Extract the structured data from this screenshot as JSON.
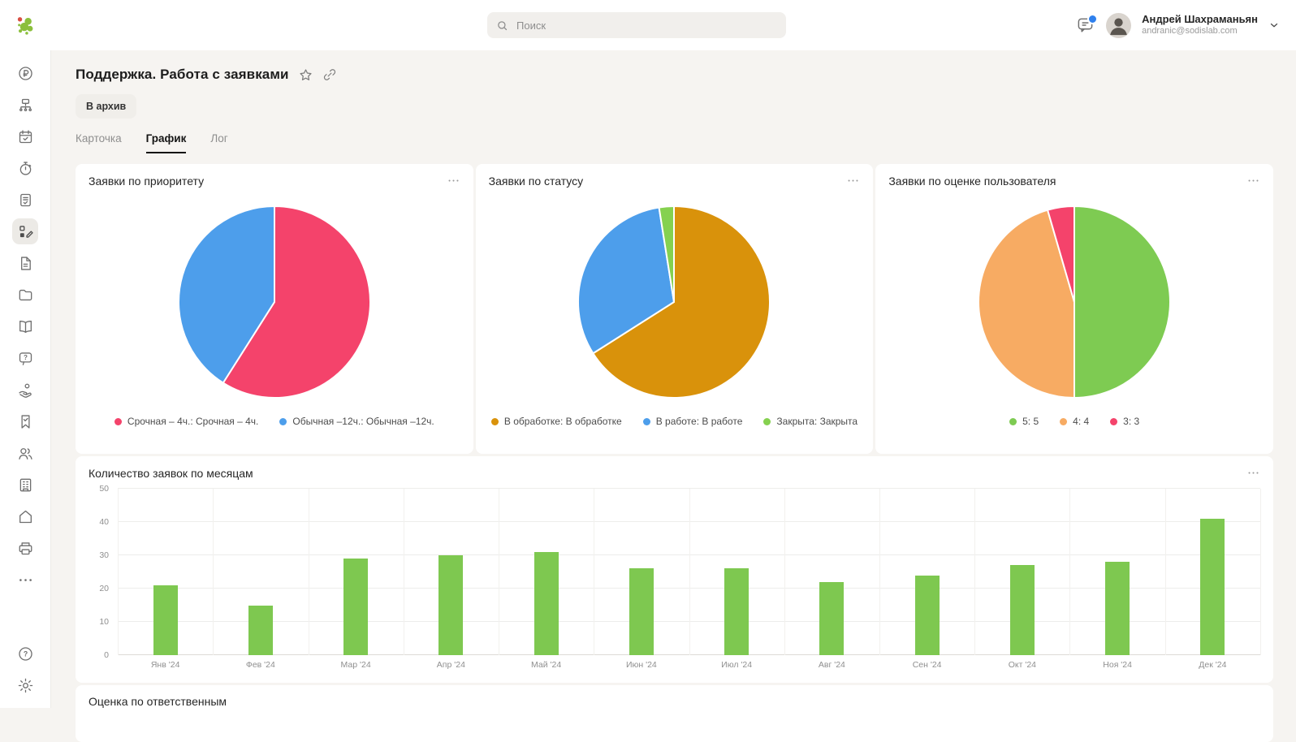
{
  "topbar": {
    "search_placeholder": "Поиск",
    "user_name": "Андрей Шахраманьян",
    "user_email": "andranic@sodislab.com"
  },
  "sidebar": {
    "items": [
      "ruble",
      "org-structure",
      "calendar",
      "timer",
      "report",
      "forms",
      "document",
      "folder",
      "book",
      "help-bubble",
      "services",
      "bookmark",
      "users",
      "company",
      "home",
      "printer",
      "more"
    ],
    "active_index": 5,
    "footer_items": [
      "help",
      "settings"
    ]
  },
  "header": {
    "title": "Поддержка. Работа с заявками",
    "archive_label": "В архив",
    "tabs": [
      {
        "label": "Карточка",
        "active": false
      },
      {
        "label": "График",
        "active": true
      },
      {
        "label": "Лог",
        "active": false
      }
    ]
  },
  "chart_data": [
    {
      "type": "pie",
      "title": "Заявки по приоритету",
      "legend_position": "bottom",
      "slices": [
        {
          "label": "Срочная – 4ч.: Срочная – 4ч.",
          "percent": 59,
          "color": "#f4436b"
        },
        {
          "label": "Обычная –12ч.: Обычная –12ч.",
          "percent": 41,
          "color": "#4d9eeb"
        }
      ]
    },
    {
      "type": "pie",
      "title": "Заявки по статусу",
      "legend_position": "bottom",
      "slices": [
        {
          "label": "В обработке: В обработке",
          "percent": 66,
          "color": "#d9920b"
        },
        {
          "label": "В работе: В работе",
          "percent": 31.5,
          "color": "#4d9eeb"
        },
        {
          "label": "Закрыта: Закрыта",
          "percent": 2.5,
          "color": "#85d14f"
        }
      ]
    },
    {
      "type": "pie",
      "title": "Заявки по оценке пользователя",
      "legend_position": "bottom",
      "slices": [
        {
          "label": "5: 5",
          "percent": 50,
          "color": "#7ecb52"
        },
        {
          "label": "4: 4",
          "percent": 45.5,
          "color": "#f7ab63"
        },
        {
          "label": "3: 3",
          "percent": 4.5,
          "color": "#f4436b"
        }
      ]
    },
    {
      "type": "bar",
      "title": "Количество заявок по месяцам",
      "categories": [
        "Янв '24",
        "Фев '24",
        "Мар '24",
        "Апр '24",
        "Май '24",
        "Июн '24",
        "Июл '24",
        "Авг '24",
        "Сен '24",
        "Окт '24",
        "Ноя '24",
        "Дек '24"
      ],
      "values": [
        21,
        15,
        29,
        30,
        31,
        26,
        26,
        22,
        24,
        27,
        28,
        41
      ],
      "bar_color": "#7ec850",
      "xlabel": "",
      "ylabel": "",
      "ylim": [
        0,
        50
      ],
      "yticks": [
        0,
        10,
        20,
        30,
        40,
        50
      ],
      "grid": true
    }
  ],
  "bottom_card": {
    "title": "Оценка по ответственным"
  }
}
